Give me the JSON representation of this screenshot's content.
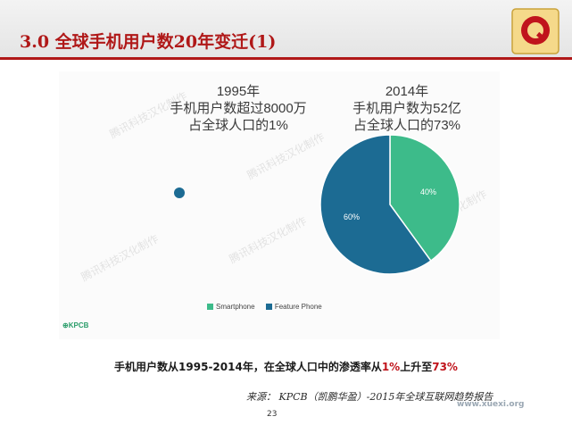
{
  "slide": {
    "title": "3.0  全球手机用户数20年变迁(1)",
    "captions": {
      "left": [
        "1995年",
        "手机用户数超过8000万",
        "占全球人口的1%"
      ],
      "right": [
        "2014年",
        "手机用户数为52亿",
        "占全球人口的73%"
      ]
    },
    "legend": [
      "Smartphone",
      "Feature Phone"
    ],
    "source_logo": "KPCB",
    "watermark": "腾讯科技汉化制作",
    "summary": {
      "prefix": "手机用户数从1995-2014年，在全球人口中的渗透率从",
      "from": "1%",
      "middle": "上升至",
      "to": "73%"
    },
    "source": "来源：  KPCB（凯鹏华盈）-2015年全球互联网趋势报告",
    "page_number": "23",
    "site_watermark": "www.xuexi.org"
  },
  "chart_data": {
    "type": "pie",
    "series": [
      {
        "name": "Smartphone",
        "value": 40,
        "label": "40%",
        "color": "#3dbb8a"
      },
      {
        "name": "Feature Phone",
        "value": 60,
        "label": "60%",
        "color": "#1c6b93"
      }
    ],
    "small_marker_color": "#1c6b93"
  },
  "colors": {
    "accent": "#b01818",
    "highlight": "#c0141c"
  }
}
